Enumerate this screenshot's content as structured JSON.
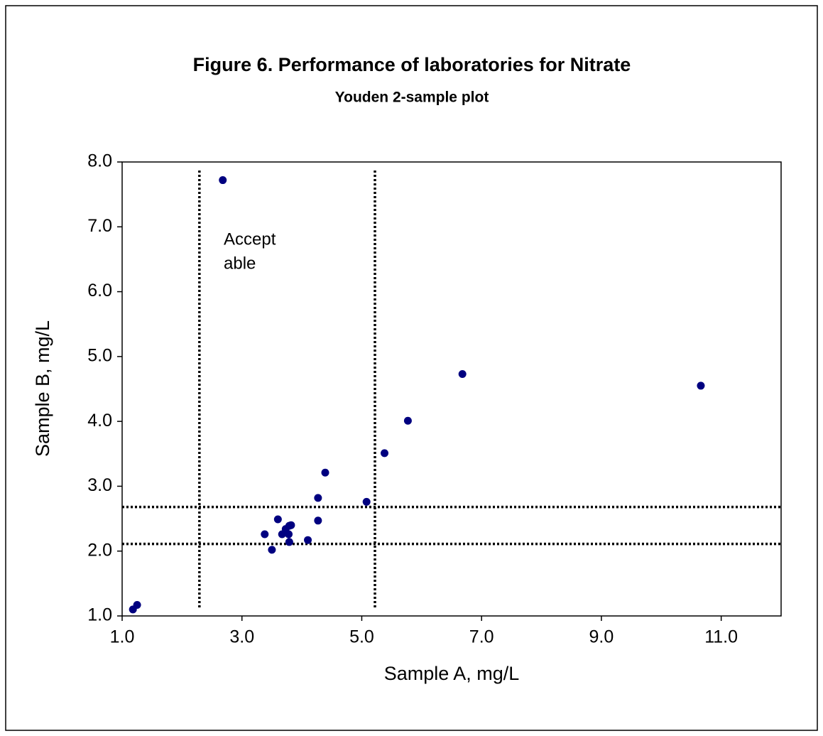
{
  "chart_data": {
    "type": "scatter",
    "title": "Figure 6. Performance of laboratories for Nitrate",
    "subtitle": "Youden 2-sample plot",
    "x_label": "Sample A, mg/L",
    "y_label": "Sample B, mg/L",
    "annotation": [
      "Accept",
      "able"
    ],
    "color": "#000080",
    "xlim": [
      1,
      12
    ],
    "ylim": [
      1,
      8
    ],
    "xticks": [
      {
        "value": 1,
        "label": "1.0"
      },
      {
        "value": 3,
        "label": "3.0"
      },
      {
        "value": 5,
        "label": "5.0"
      },
      {
        "value": 7,
        "label": "7.0"
      },
      {
        "value": 9,
        "label": "9.0"
      },
      {
        "value": 11,
        "label": "11.0"
      }
    ],
    "yticks": [
      {
        "value": 1,
        "label": "1.0"
      },
      {
        "value": 2,
        "label": "2.0"
      },
      {
        "value": 3,
        "label": "3.0"
      },
      {
        "value": 4,
        "label": "4.0"
      },
      {
        "value": 5,
        "label": "5.0"
      },
      {
        "value": 6,
        "label": "6.0"
      },
      {
        "value": 7,
        "label": "7.0"
      },
      {
        "value": 8,
        "label": "8.0"
      }
    ],
    "x": [
      1.18,
      1.25,
      2.68,
      3.38,
      3.5,
      3.6,
      3.67,
      3.73,
      3.78,
      3.79,
      3.82,
      3.79,
      4.1,
      4.27,
      4.27,
      4.39,
      5.08,
      5.38,
      5.77,
      6.68,
      10.66
    ],
    "values": [
      1.1,
      1.17,
      7.72,
      2.26,
      2.02,
      2.49,
      2.26,
      2.34,
      2.26,
      2.39,
      2.4,
      2.14,
      2.17,
      2.47,
      2.82,
      3.21,
      2.76,
      3.51,
      4.01,
      4.73,
      4.55
    ],
    "x_reference_lines": [
      2.29,
      5.22
    ],
    "y_reference_lines": [
      2.11,
      2.68
    ]
  }
}
